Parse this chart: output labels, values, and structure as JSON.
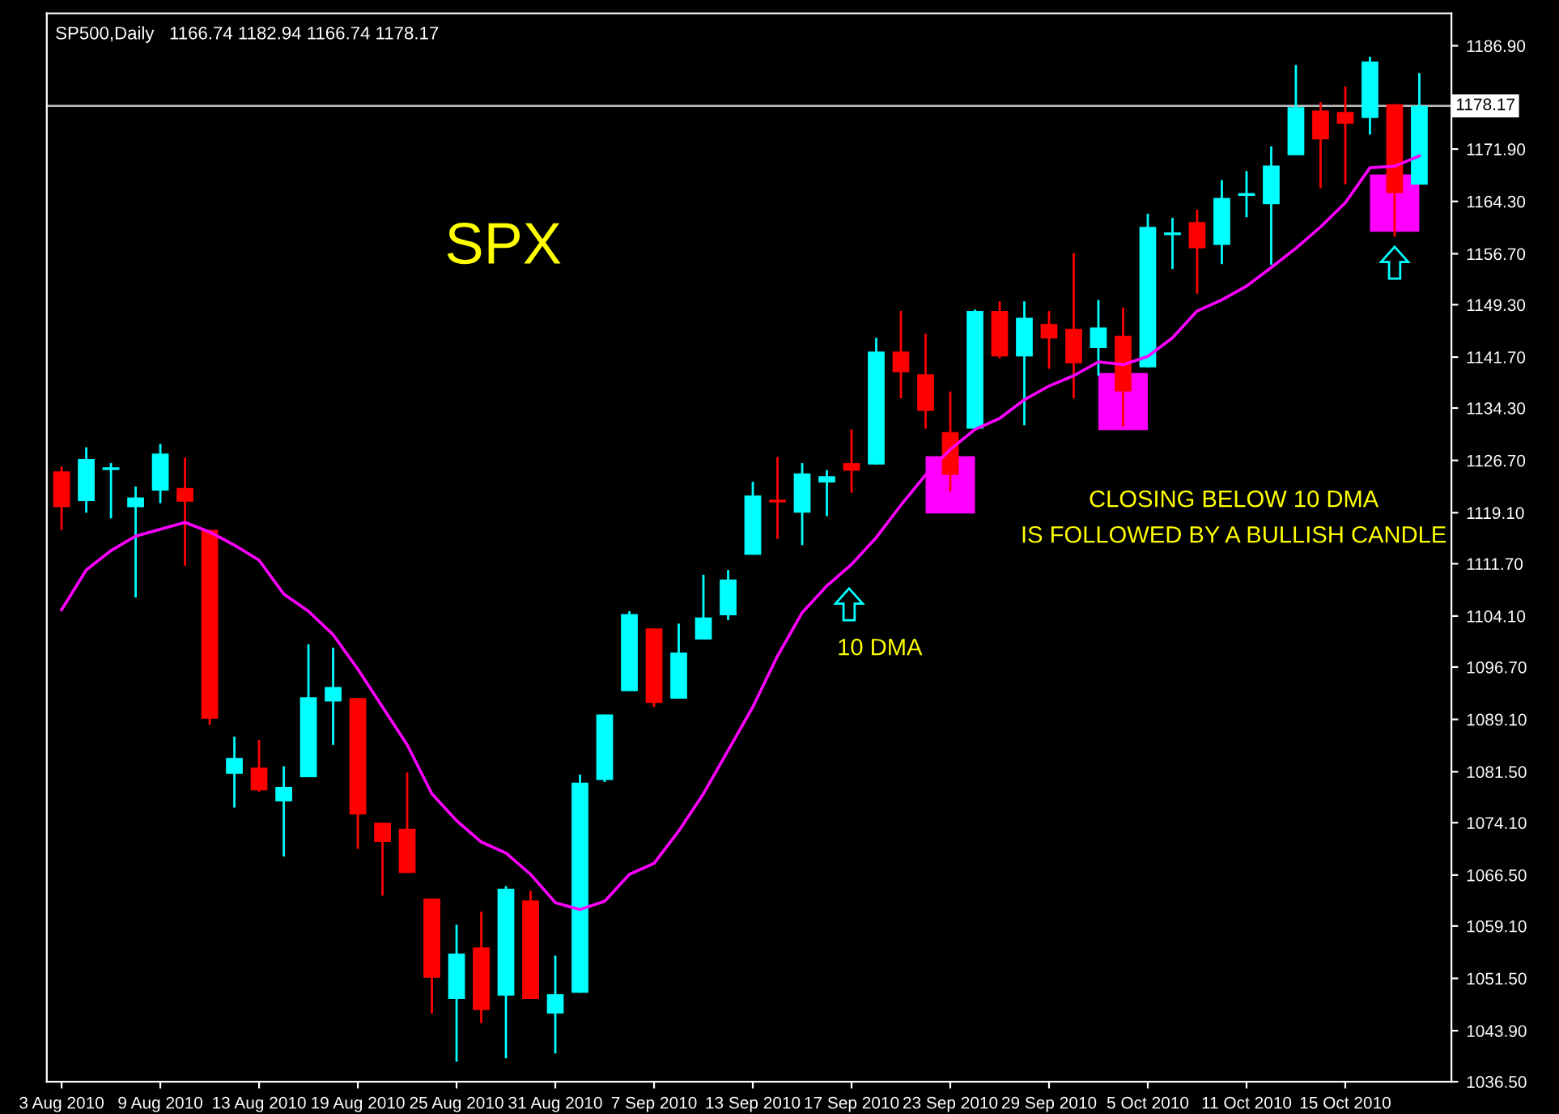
{
  "chart_data": {
    "type": "candlestick",
    "categories": [
      "3 Aug 2010",
      null,
      null,
      null,
      "9 Aug 2010",
      null,
      null,
      null,
      "13 Aug 2010",
      null,
      null,
      null,
      "19 Aug 2010",
      null,
      null,
      null,
      "25 Aug 2010",
      null,
      null,
      null,
      "31 Aug 2010",
      null,
      null,
      null,
      "7 Sep 2010",
      null,
      null,
      null,
      "13 Sep 2010",
      null,
      null,
      null,
      "17 Sep 2010",
      null,
      null,
      null,
      "23 Sep 2010",
      null,
      null,
      null,
      "29 Sep 2010",
      null,
      null,
      null,
      "5 Oct 2010",
      null,
      null,
      null,
      "11 Oct 2010",
      null,
      null,
      null,
      "15 Oct 2010",
      null,
      null,
      null
    ],
    "ohlc": [
      [
        1125.1,
        1125.8,
        1116.6,
        1119.9
      ],
      [
        1120.8,
        1128.6,
        1119.1,
        1126.9
      ],
      [
        1125.5,
        1126.3,
        1118.3,
        1125.5
      ],
      [
        1119.9,
        1122.9,
        1106.8,
        1121.3
      ],
      [
        1122.3,
        1129.1,
        1120.5,
        1127.7
      ],
      [
        1122.7,
        1127.1,
        1111.4,
        1120.7
      ],
      [
        1116.6,
        1116.6,
        1088.3,
        1089.2
      ],
      [
        1081.2,
        1086.6,
        1076.3,
        1083.5
      ],
      [
        1082.1,
        1086.1,
        1078.6,
        1078.8
      ],
      [
        1077.2,
        1082.3,
        1069.2,
        1079.3
      ],
      [
        1080.7,
        1100.0,
        1080.7,
        1092.3
      ],
      [
        1091.7,
        1099.5,
        1085.4,
        1093.8
      ],
      [
        1092.2,
        1092.2,
        1070.3,
        1075.3
      ],
      [
        1074.1,
        1074.1,
        1063.5,
        1071.3
      ],
      [
        1073.2,
        1081.4,
        1066.8,
        1066.8
      ],
      [
        1063.1,
        1063.1,
        1046.4,
        1051.6
      ],
      [
        1048.5,
        1059.3,
        1039.4,
        1055.1
      ],
      [
        1056.0,
        1061.2,
        1045.0,
        1046.9
      ],
      [
        1049.0,
        1064.9,
        1039.9,
        1064.5
      ],
      [
        1062.8,
        1064.2,
        1048.5,
        1048.5
      ],
      [
        1046.4,
        1054.8,
        1040.6,
        1049.2
      ],
      [
        1049.4,
        1081.1,
        1049.4,
        1079.9
      ],
      [
        1080.3,
        1089.8,
        1080.0,
        1089.8
      ],
      [
        1093.2,
        1104.8,
        1093.2,
        1104.4
      ],
      [
        1102.3,
        1102.3,
        1090.9,
        1091.5
      ],
      [
        1092.1,
        1103.0,
        1092.1,
        1098.8
      ],
      [
        1100.7,
        1110.1,
        1100.7,
        1103.9
      ],
      [
        1104.2,
        1110.8,
        1103.5,
        1109.4
      ],
      [
        1113.0,
        1123.6,
        1113.0,
        1121.6
      ],
      [
        1120.8,
        1127.2,
        1115.3,
        1120.8
      ],
      [
        1119.1,
        1126.3,
        1114.4,
        1124.8
      ],
      [
        1123.5,
        1125.3,
        1118.6,
        1124.4
      ],
      [
        1126.3,
        1131.2,
        1122.0,
        1125.2
      ],
      [
        1126.1,
        1144.5,
        1126.1,
        1142.5
      ],
      [
        1142.5,
        1148.4,
        1135.7,
        1139.5
      ],
      [
        1139.2,
        1145.1,
        1131.3,
        1133.9
      ],
      [
        1130.8,
        1136.7,
        1122.2,
        1124.6
      ],
      [
        1131.3,
        1148.6,
        1131.3,
        1148.4
      ],
      [
        1148.4,
        1149.8,
        1141.5,
        1141.8
      ],
      [
        1141.8,
        1149.8,
        1131.8,
        1147.4
      ],
      [
        1146.5,
        1148.4,
        1140.0,
        1144.4
      ],
      [
        1145.8,
        1156.8,
        1135.7,
        1140.8
      ],
      [
        1143.0,
        1150.0,
        1139.0,
        1146.0
      ],
      [
        1144.8,
        1148.9,
        1131.6,
        1136.7
      ],
      [
        1140.2,
        1162.5,
        1140.2,
        1160.6
      ],
      [
        1159.6,
        1161.9,
        1154.5,
        1159.6
      ],
      [
        1161.3,
        1163.1,
        1150.9,
        1157.5
      ],
      [
        1158.0,
        1167.4,
        1155.2,
        1164.8
      ],
      [
        1165.3,
        1168.7,
        1162.0,
        1165.3
      ],
      [
        1163.9,
        1172.3,
        1155.1,
        1169.5
      ],
      [
        1171.0,
        1184.1,
        1171.0,
        1178.0
      ],
      [
        1177.5,
        1178.7,
        1166.2,
        1173.3
      ],
      [
        1177.3,
        1181.0,
        1166.8,
        1175.6
      ],
      [
        1176.4,
        1185.3,
        1174.0,
        1184.6
      ],
      [
        1178.4,
        1178.4,
        1159.2,
        1165.5
      ],
      [
        1166.74,
        1182.94,
        1166.74,
        1178.17
      ]
    ],
    "colors": [
      "#ff0000",
      "#00ffff",
      "#00ffff",
      "#00ffff",
      "#00ffff",
      "#ff0000",
      "#ff0000",
      "#00ffff",
      "#ff0000",
      "#00ffff",
      "#00ffff",
      "#00ffff",
      "#ff0000",
      "#ff0000",
      "#ff0000",
      "#ff0000",
      "#00ffff",
      "#ff0000",
      "#00ffff",
      "#ff0000",
      "#00ffff",
      "#00ffff",
      "#00ffff",
      "#00ffff",
      "#ff0000",
      "#00ffff",
      "#00ffff",
      "#00ffff",
      "#00ffff",
      "#ff0000",
      "#00ffff",
      "#00ffff",
      "#ff0000",
      "#00ffff",
      "#ff0000",
      "#ff0000",
      "#ff0000",
      "#00ffff",
      "#ff0000",
      "#00ffff",
      "#ff0000",
      "#ff0000",
      "#00ffff",
      "#ff0000",
      "#00ffff",
      "#00ffff",
      "#ff0000",
      "#00ffff",
      "#00ffff",
      "#00ffff",
      "#00ffff",
      "#ff0000",
      "#ff0000",
      "#00ffff",
      "#ff0000",
      "#00ffff"
    ],
    "series": [
      {
        "type": "line",
        "color": "#ff00ff",
        "values": [
          1105.0,
          1110.8,
          1113.6,
          1115.7,
          1116.7,
          1117.7,
          1116.3,
          1114.4,
          1112.2,
          1107.3,
          1104.8,
          1101.4,
          1096.4,
          1090.9,
          1085.4,
          1078.3,
          1074.4,
          1071.3,
          1069.7,
          1066.6,
          1062.5,
          1061.5,
          1062.7,
          1066.6,
          1068.2,
          1072.9,
          1078.3,
          1084.6,
          1090.9,
          1098.3,
          1104.6,
          1108.5,
          1111.6,
          1115.5,
          1120.2,
          1124.6,
          1128.3,
          1131.2,
          1132.8,
          1135.5,
          1137.5,
          1139.0,
          1141.0,
          1140.6,
          1141.8,
          1144.5,
          1148.4,
          1150.0,
          1152.0,
          1154.7,
          1157.5,
          1160.6,
          1164.1,
          1169.2,
          1169.4,
          1170.9
        ]
      }
    ],
    "ylim": [
      1036.5,
      1191.6
    ],
    "yticks": [
      {
        "value": 1036.5,
        "label": "1036.50"
      },
      {
        "value": 1043.9,
        "label": "1043.90"
      },
      {
        "value": 1051.5,
        "label": "1051.50"
      },
      {
        "value": 1059.1,
        "label": "1059.10"
      },
      {
        "value": 1066.5,
        "label": "1066.50"
      },
      {
        "value": 1074.1,
        "label": "1074.10"
      },
      {
        "value": 1081.5,
        "label": "1081.50"
      },
      {
        "value": 1089.1,
        "label": "1089.10"
      },
      {
        "value": 1096.7,
        "label": "1096.70"
      },
      {
        "value": 1104.1,
        "label": "1104.10"
      },
      {
        "value": 1111.7,
        "label": "1111.70"
      },
      {
        "value": 1119.1,
        "label": "1119.10"
      },
      {
        "value": 1126.7,
        "label": "1126.70"
      },
      {
        "value": 1134.3,
        "label": "1134.30"
      },
      {
        "value": 1141.7,
        "label": "1141.70"
      },
      {
        "value": 1149.3,
        "label": "1149.30"
      },
      {
        "value": 1156.7,
        "label": "1156.70"
      },
      {
        "value": 1164.3,
        "label": "1164.30"
      },
      {
        "value": 1171.9,
        "label": "1171.90"
      },
      {
        "value": 1186.9,
        "label": "1186.90"
      }
    ],
    "ref_lines": [
      {
        "axis": "y",
        "value": 1178.17,
        "label": "1178.17",
        "color": "#c0c0c0"
      }
    ],
    "annotations": [
      "SP500,Daily   1166.74 1182.94 1166.74 1178.17",
      "SPX",
      "10 DMA",
      "CLOSING BELOW 10 DMA\nIS FOLLOWED BY A BULLISH CANDLE"
    ],
    "grid": false
  }
}
